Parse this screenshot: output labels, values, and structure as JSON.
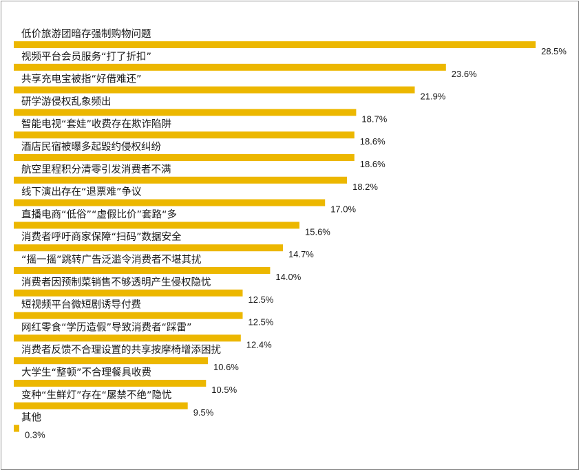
{
  "chart_data": {
    "type": "bar",
    "orientation": "horizontal",
    "categories": [
      "低价旅游团暗存强制购物问题",
      "视频平台会员服务“打了折扣”",
      "共享充电宝被指“好借难还”",
      "研学游侵权乱象频出",
      "智能电视“套娃”收费存在欺诈陷阱",
      "酒店民宿被曝多起毁约侵权纠纷",
      "航空里程积分清零引发消费者不满",
      "线下演出存在“退票难”争议",
      "直播电商“低俗”“虚假比价”套路“多",
      "消费者呼吁商家保障“扫码”数据安全",
      "“摇一摇”跳转广告泛滥令消费者不堪其扰",
      "消费者因预制菜销售不够透明产生侵权隐忧",
      "短视频平台微短剧诱导付费",
      "网红零食“学历造假”导致消费者“踩雷”",
      "消费者反馈不合理设置的共享按摩椅增添困扰",
      "大学生“整顿”不合理餐具收费",
      "变种“生鲜灯”存在“屡禁不绝”隐忧",
      "其他"
    ],
    "values": [
      28.5,
      23.6,
      21.9,
      18.7,
      18.6,
      18.6,
      18.2,
      17.0,
      15.6,
      14.7,
      14.0,
      12.5,
      12.5,
      12.4,
      10.6,
      10.5,
      9.5,
      0.3
    ],
    "value_labels": [
      "28.5%",
      "23.6%",
      "21.9%",
      "18.7%",
      "18.6%",
      "18.6%",
      "18.2%",
      "17.0%",
      "15.6%",
      "14.7%",
      "14.0%",
      "12.5%",
      "12.5%",
      "12.4%",
      "10.6%",
      "10.5%",
      "9.5%",
      "0.3%"
    ],
    "unit": "%",
    "bar_color": "#ecb700",
    "grid": false,
    "legend": "none"
  }
}
